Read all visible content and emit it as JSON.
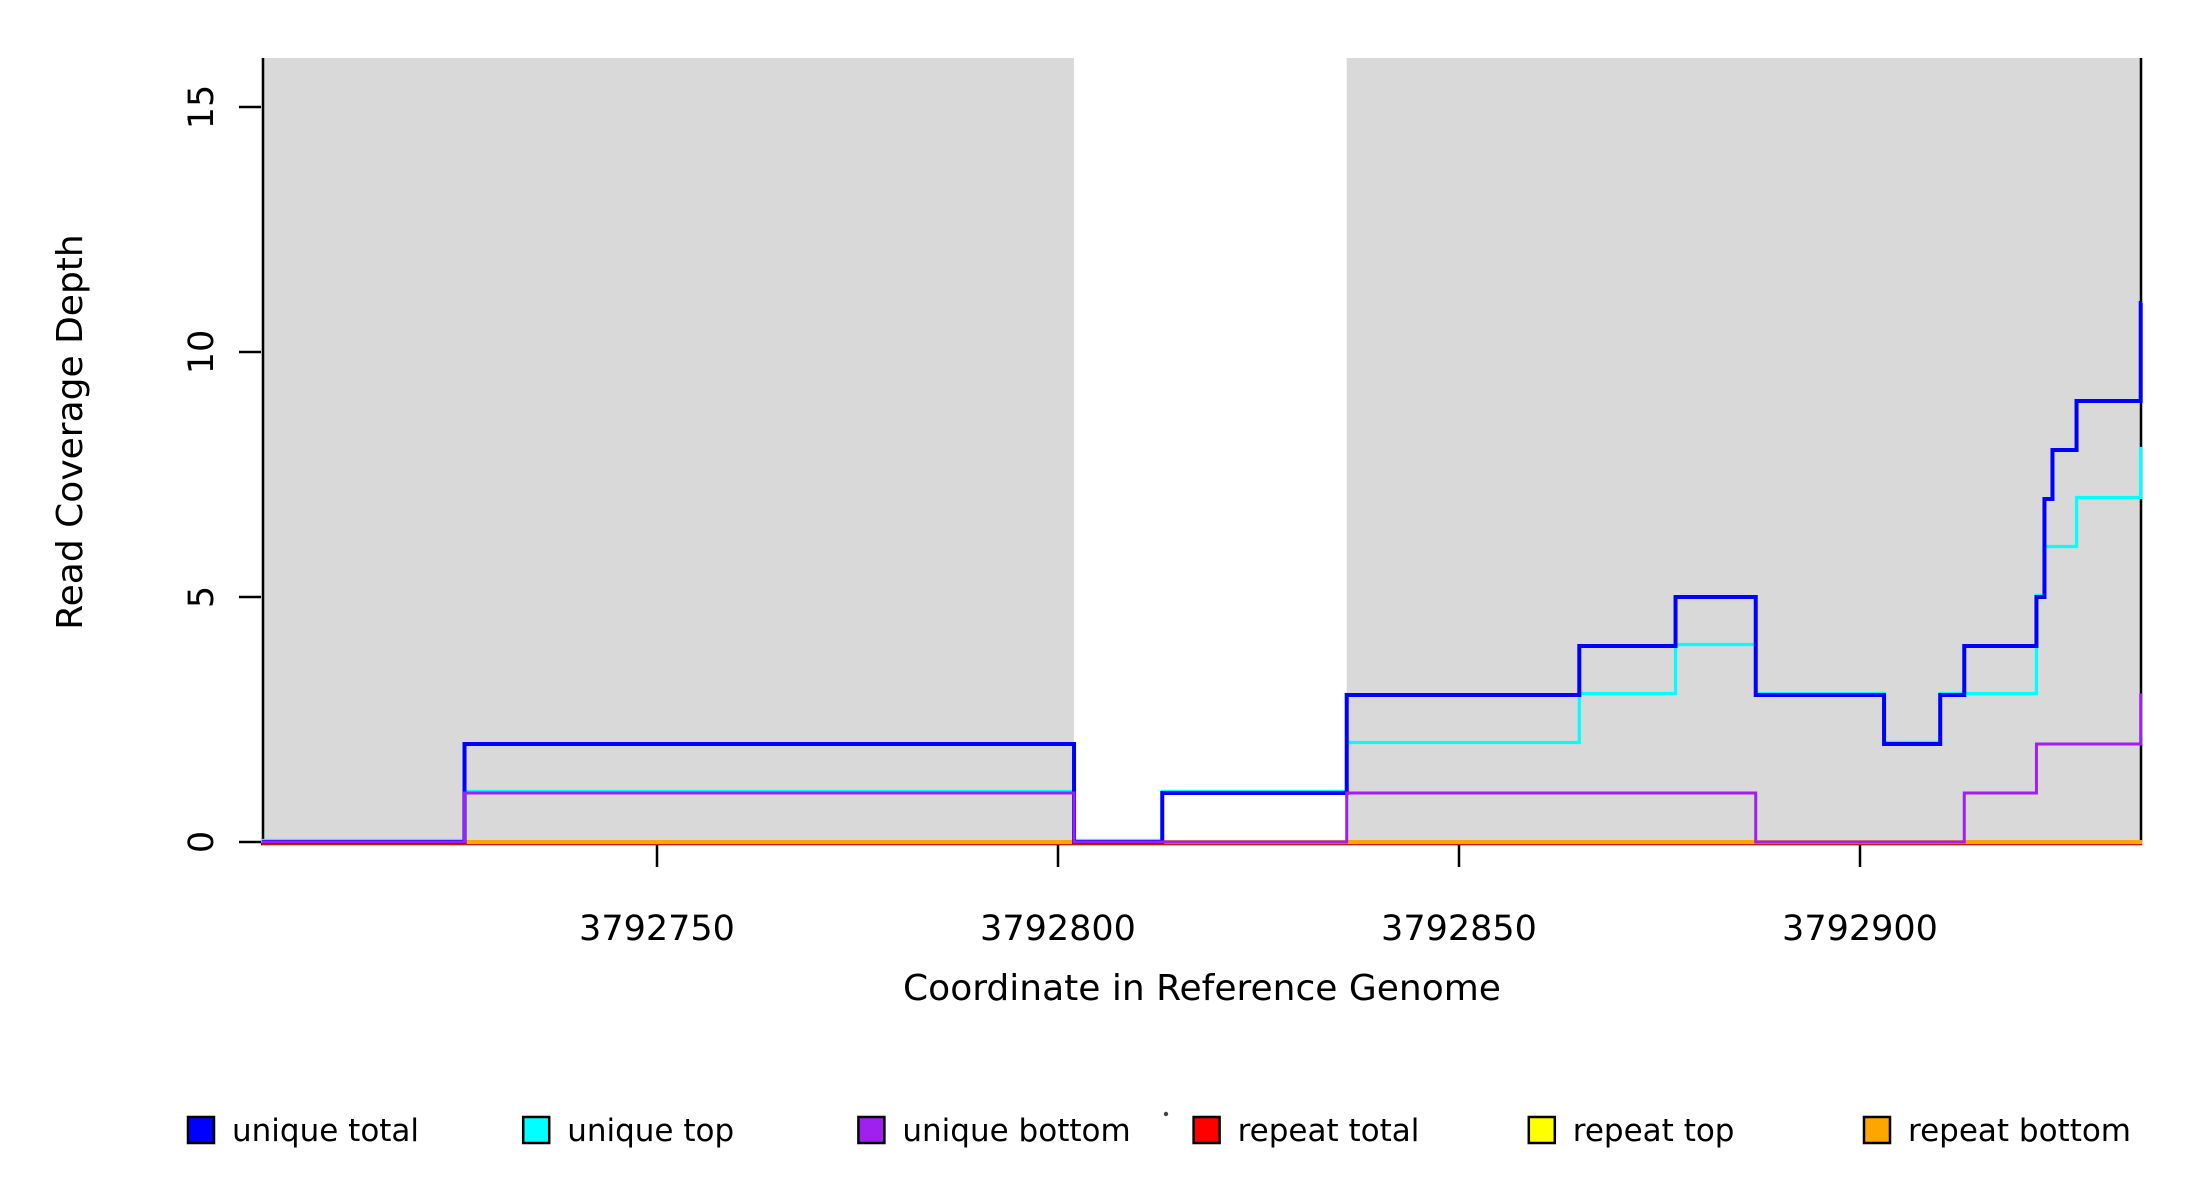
{
  "chart_data": {
    "type": "step-line",
    "title": "",
    "xlabel": "Coordinate in Reference Genome",
    "ylabel": "Read Coverage Depth",
    "x_ticks": [
      3792750,
      3792800,
      3792850,
      3792900
    ],
    "y_ticks": [
      0,
      5,
      10,
      15
    ],
    "x_range": [
      3792700.7,
      3792935.2
    ],
    "y_range": [
      0,
      16
    ],
    "grid": false,
    "legend_position": "bottom",
    "shading": {
      "color": "#d9d9d9",
      "meaning": "repeat-region shading",
      "regions": [
        [
          3792700.7,
          3792802
        ],
        [
          3792836,
          3792935.2
        ]
      ]
    },
    "series": [
      {
        "name": "repeat total",
        "color": "#ff0000",
        "width": 3,
        "dy": 1.2,
        "points": [
          [
            3792700.7,
            0
          ]
        ],
        "end": 3792935.2
      },
      {
        "name": "repeat top",
        "color": "#ffff00",
        "width": 3,
        "dy": 0.6,
        "points": [
          [
            3792700.7,
            0
          ]
        ],
        "end": 3792935.2
      },
      {
        "name": "repeat bottom",
        "color": "#ffa500",
        "width": 4,
        "dy": 0,
        "points": [
          [
            3792700.7,
            0
          ]
        ],
        "end": 3792935.2
      },
      {
        "name": "unique top",
        "color": "#00ffff",
        "width": 3.2,
        "dy": -1.5,
        "points": [
          [
            3792700.7,
            0
          ],
          [
            3792726,
            1
          ],
          [
            3792802,
            0
          ],
          [
            3792813,
            1
          ],
          [
            3792836,
            2
          ],
          [
            3792865,
            3
          ],
          [
            3792877,
            4
          ],
          [
            3792887,
            3
          ],
          [
            3792903,
            2
          ],
          [
            3792910,
            3
          ],
          [
            3792922,
            5
          ],
          [
            3792923,
            6
          ],
          [
            3792927,
            7
          ],
          [
            3792935,
            8
          ]
        ],
        "end": 3792935.2
      },
      {
        "name": "unique total",
        "color": "#0000ff",
        "width": 4,
        "dy": 0,
        "points": [
          [
            3792700.7,
            0
          ],
          [
            3792726,
            2
          ],
          [
            3792802,
            0
          ],
          [
            3792813,
            1
          ],
          [
            3792836,
            3
          ],
          [
            3792865,
            4
          ],
          [
            3792877,
            5
          ],
          [
            3792887,
            3
          ],
          [
            3792903,
            2
          ],
          [
            3792910,
            3
          ],
          [
            3792913,
            4
          ],
          [
            3792922,
            5
          ],
          [
            3792923,
            7
          ],
          [
            3792924,
            8
          ],
          [
            3792927,
            9
          ],
          [
            3792935,
            11
          ]
        ],
        "end": 3792935.2
      },
      {
        "name": "unique bottom",
        "color": "#a020f0",
        "width": 3,
        "dy": 0,
        "points": [
          [
            3792700.7,
            0
          ],
          [
            3792726,
            1
          ],
          [
            3792802,
            0
          ],
          [
            3792836,
            1
          ],
          [
            3792887,
            0
          ],
          [
            3792913,
            1
          ],
          [
            3792922,
            2
          ],
          [
            3792935,
            3
          ]
        ],
        "end": 3792935.2
      }
    ]
  },
  "legend": {
    "items": [
      {
        "label": "unique total",
        "color": "#0000ff"
      },
      {
        "label": "unique top",
        "color": "#00ffff"
      },
      {
        "label": "unique bottom",
        "color": "#a020f0"
      },
      {
        "label": "repeat total",
        "color": "#ff0000"
      },
      {
        "label": "repeat top",
        "color": "#ffff00"
      },
      {
        "label": "repeat bottom",
        "color": "#ffa500"
      }
    ],
    "stray_dot": true
  }
}
